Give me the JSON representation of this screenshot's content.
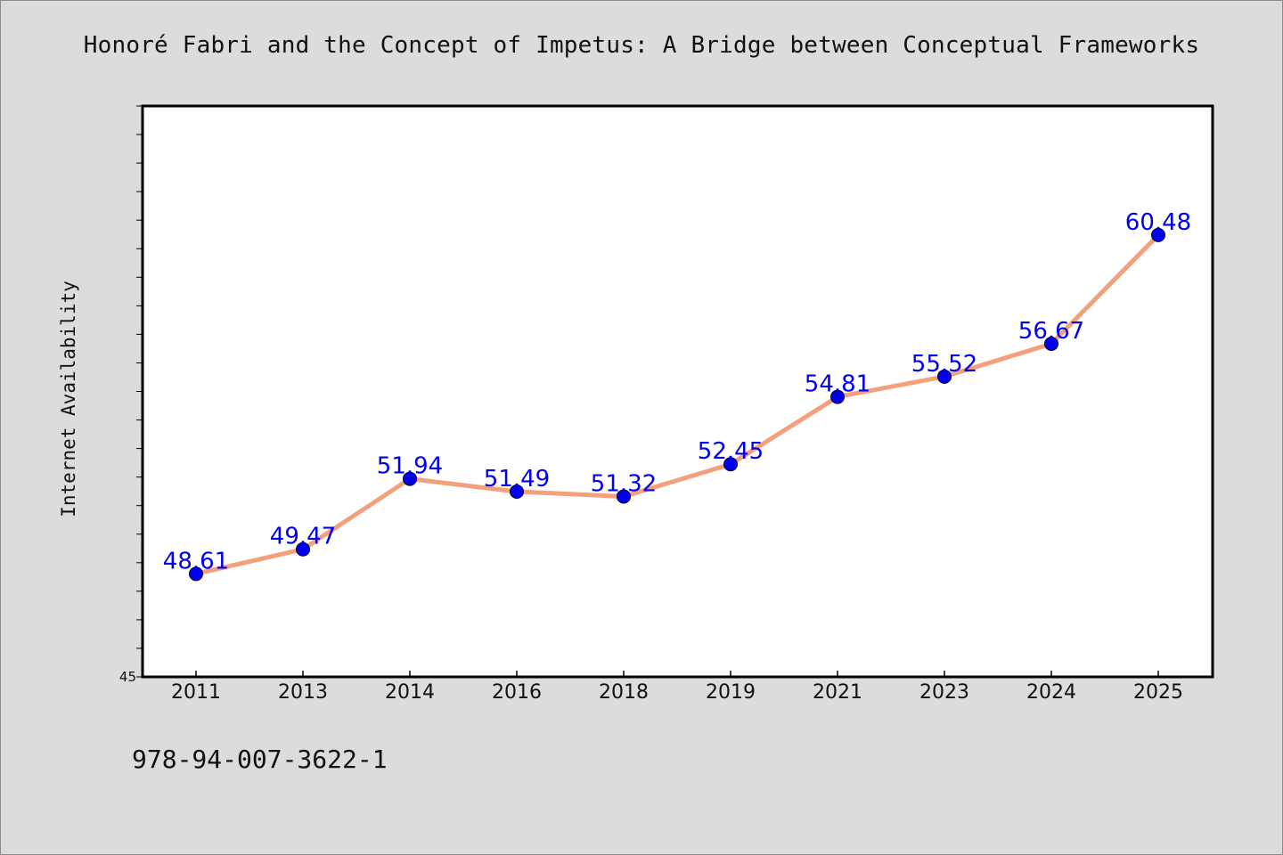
{
  "title": "Honoré Fabri and the Concept of Impetus: A Bridge between Conceptual Frameworks",
  "footer_text": "978-94-007-3622-1",
  "chart_data": {
    "type": "line",
    "title": "Honoré Fabri and the Concept of Impetus: A Bridge between Conceptual Frameworks",
    "xlabel": "",
    "ylabel": "Internet Availability",
    "categories": [
      "2011",
      "2013",
      "2014",
      "2016",
      "2018",
      "2019",
      "2021",
      "2023",
      "2024",
      "2025"
    ],
    "series": [
      {
        "values": [
          48.61,
          49.47,
          51.94,
          51.49,
          51.32,
          52.45,
          54.81,
          55.52,
          56.67,
          60.48
        ],
        "labels": [
          "48.61",
          "49.47",
          "51.94",
          "51.49",
          "51.32",
          "52.45",
          "54.81",
          "55.52",
          "56.67",
          "60.48"
        ]
      }
    ],
    "ylim": [
      45,
      65
    ],
    "ytick_labels": [
      "45"
    ],
    "grid": false,
    "colors": {
      "line": "#f4a07c",
      "marker": "#0000ee",
      "data_label": "#0000ee",
      "plot_bg": "#ffffff",
      "page_bg": "#dcdcdc"
    }
  }
}
